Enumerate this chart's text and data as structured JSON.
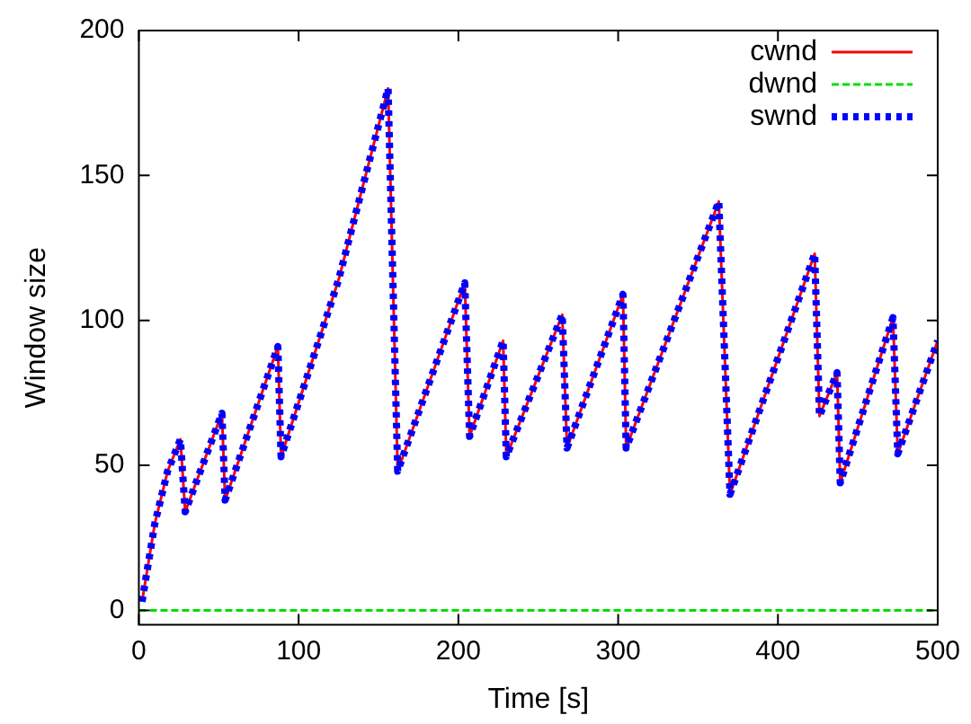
{
  "chart_data": {
    "type": "line",
    "xlabel": "Time [s]",
    "ylabel": "Window size",
    "x": [
      2,
      10,
      18,
      26,
      29,
      52,
      54,
      87,
      89,
      125,
      156,
      162,
      204,
      207,
      228,
      230,
      265,
      268,
      303,
      305,
      363,
      370,
      423,
      426,
      437,
      439,
      472,
      475,
      500
    ],
    "series": [
      {
        "name": "cwnd",
        "color": "#ff0000",
        "line_style": "solid",
        "values": [
          3,
          30,
          48,
          59,
          34,
          68,
          38,
          91,
          53,
          114,
          180,
          48,
          113,
          60,
          93,
          53,
          102,
          56,
          109,
          56,
          141,
          40,
          123,
          67,
          82,
          44,
          101,
          54,
          93
        ]
      },
      {
        "name": "dwnd",
        "color": "#00dd00",
        "line_style": "dashed",
        "x": [
          0,
          500
        ],
        "values": [
          0,
          0
        ]
      },
      {
        "name": "swnd",
        "color": "#0000ff",
        "line_style": "dotted",
        "values": [
          3,
          30,
          48,
          59,
          34,
          68,
          38,
          91,
          53,
          114,
          180,
          48,
          113,
          60,
          93,
          53,
          102,
          56,
          109,
          56,
          141,
          40,
          123,
          67,
          82,
          44,
          101,
          54,
          93
        ]
      }
    ],
    "xlim": [
      0,
      500
    ],
    "xticks": [
      0,
      100,
      200,
      300,
      400,
      500
    ],
    "ylim": [
      -5,
      200
    ],
    "yticks": [
      0,
      50,
      100,
      150,
      200
    ],
    "grid": false,
    "legend": "top right",
    "marker": "none"
  }
}
